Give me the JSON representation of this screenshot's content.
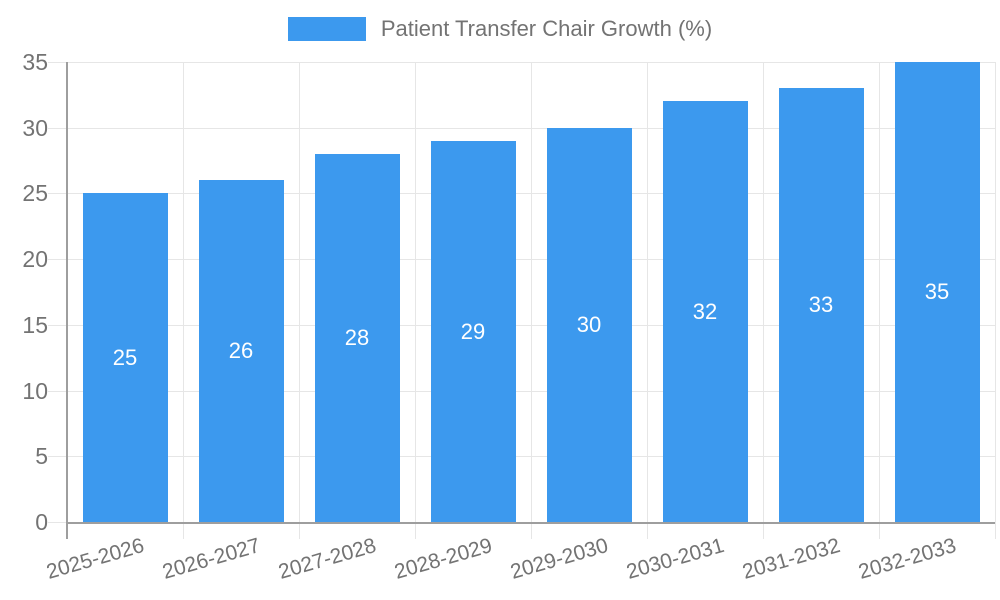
{
  "legend": {
    "label": "Patient Transfer Chair Growth (%)"
  },
  "chart_data": {
    "type": "bar",
    "title": "Patient Transfer Chair Growth (%)",
    "categories": [
      "2025-2026",
      "2026-2027",
      "2027-2028",
      "2028-2029",
      "2029-2030",
      "2030-2031",
      "2031-2032",
      "2032-2033"
    ],
    "values": [
      25,
      26,
      28,
      29,
      30,
      32,
      33,
      35
    ],
    "value_labels_shown": true,
    "value_label_position": "inside-center",
    "xlabel": "",
    "ylabel": "",
    "ylim": [
      0,
      35
    ],
    "yticks": [
      0,
      5,
      10,
      15,
      20,
      25,
      30,
      35
    ],
    "grid": true,
    "legend_position": "top-center",
    "x_tick_rotation_deg": -16
  },
  "colors": {
    "bar": "#3C99EE",
    "grid": "#E6E6E6",
    "axis": "#9E9E9E",
    "tick_text": "#737373",
    "legend_text": "#737373",
    "value_label_text": "#FFFFFF",
    "background": "#FFFFFF"
  }
}
